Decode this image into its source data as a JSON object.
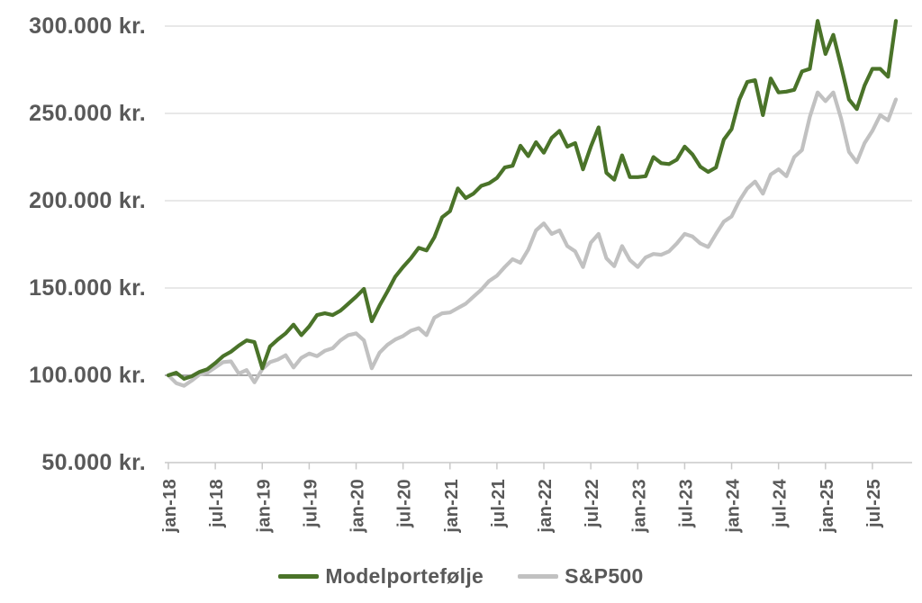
{
  "chart_data": {
    "type": "line",
    "title": "",
    "values_unit": "1000 kr.",
    "x_start": "jan-2018",
    "x_frequency": "monthly",
    "x_tick_labels": [
      "jan-18",
      "jul-18",
      "jan-19",
      "jul-19",
      "jan-20",
      "jul-20",
      "jan-21",
      "jul-21",
      "jan-22",
      "jul-22",
      "jan-23",
      "jul-23",
      "jan-24",
      "jul-24",
      "jan-25",
      "jul-25"
    ],
    "x_tick_interval_months": 6,
    "y_tick_labels": [
      "300.000 kr.",
      "250.000 kr.",
      "200.000 kr.",
      "150.000 kr.",
      "100.000 kr.",
      "50.000 kr."
    ],
    "y_tick_values": [
      300,
      250,
      200,
      150,
      100,
      50
    ],
    "ylim": [
      50,
      300
    ],
    "baseline_value": 100,
    "grid": "horizontal",
    "legend_position": "bottom",
    "series": [
      {
        "name": "Modelportefølje",
        "color": "#4a7329",
        "values": [
          100,
          101.5,
          98,
          99.5,
          102,
          103.5,
          107,
          111,
          113.5,
          117,
          120,
          119,
          104,
          116.5,
          120.5,
          124,
          129,
          123,
          128,
          134.5,
          135.5,
          134.5,
          137,
          141,
          145,
          149.5,
          131,
          140,
          148,
          156.5,
          162,
          167,
          173,
          171.5,
          179,
          190.5,
          194,
          207,
          201.5,
          204,
          208.5,
          210,
          213,
          219,
          220,
          231.5,
          225.5,
          233.5,
          227.5,
          236,
          240,
          231,
          233,
          218,
          231,
          242,
          216,
          212,
          226,
          213.5,
          213.5,
          214,
          225,
          221.5,
          221,
          223.5,
          231,
          226.5,
          219.5,
          216.5,
          219,
          235,
          241,
          258,
          268,
          269,
          249,
          270,
          262,
          262.5,
          263.5,
          274,
          275.5,
          303,
          284,
          295,
          277,
          258,
          252.5,
          266,
          275.5,
          275.5,
          271,
          303
        ]
      },
      {
        "name": "S&P500",
        "color": "#c1c1c1",
        "values": [
          100,
          95.5,
          94,
          97,
          100.5,
          101.5,
          104.5,
          107.5,
          108,
          101,
          103,
          96,
          103.5,
          107.5,
          109,
          111.5,
          104.5,
          110,
          112.5,
          111,
          114,
          115.5,
          120,
          123,
          124,
          120,
          104,
          113,
          117.5,
          120.5,
          122.5,
          125.5,
          127,
          123,
          133,
          135.5,
          136,
          138.5,
          141,
          145,
          149,
          154,
          157,
          162,
          166.5,
          164.5,
          172,
          183,
          187,
          181,
          183,
          174,
          171,
          162,
          176,
          181,
          167,
          162.5,
          174,
          166,
          162,
          167.5,
          169.5,
          169,
          171,
          175.5,
          181,
          179.5,
          175.5,
          173.5,
          181,
          188,
          191,
          200,
          207,
          211,
          204,
          215,
          218,
          214,
          225,
          229,
          248,
          262,
          257,
          262,
          247,
          228,
          222,
          233,
          240,
          249,
          246,
          258
        ]
      }
    ]
  },
  "colors": {
    "text": "#595959",
    "gridline": "#d9d9d9",
    "baseline_gridline": "#8c8c8c",
    "axis_line": "#c9c9c9",
    "background": "#ffffff"
  }
}
